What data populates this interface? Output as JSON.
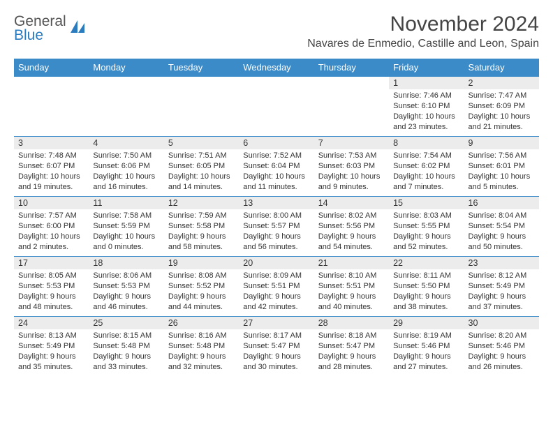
{
  "brand": {
    "part1": "General",
    "part2": "Blue"
  },
  "title": "November 2024",
  "location": "Navares de Enmedio, Castille and Leon, Spain",
  "colors": {
    "header_bg": "#3b8bc9",
    "header_text": "#ffffff",
    "cell_border": "#3b8bc9",
    "daynum_bg": "#ececec",
    "text": "#333333",
    "logo_blue": "#2b7bbf",
    "background": "#ffffff"
  },
  "fonts": {
    "title_pt": 30,
    "location_pt": 16,
    "th_pt": 13,
    "daynum_pt": 12.5,
    "body_pt": 11
  },
  "weekdays": [
    "Sunday",
    "Monday",
    "Tuesday",
    "Wednesday",
    "Thursday",
    "Friday",
    "Saturday"
  ],
  "weeks": [
    [
      null,
      null,
      null,
      null,
      null,
      {
        "n": "1",
        "sr": "Sunrise: 7:46 AM",
        "ss": "Sunset: 6:10 PM",
        "d1": "Daylight: 10 hours",
        "d2": "and 23 minutes."
      },
      {
        "n": "2",
        "sr": "Sunrise: 7:47 AM",
        "ss": "Sunset: 6:09 PM",
        "d1": "Daylight: 10 hours",
        "d2": "and 21 minutes."
      }
    ],
    [
      {
        "n": "3",
        "sr": "Sunrise: 7:48 AM",
        "ss": "Sunset: 6:07 PM",
        "d1": "Daylight: 10 hours",
        "d2": "and 19 minutes."
      },
      {
        "n": "4",
        "sr": "Sunrise: 7:50 AM",
        "ss": "Sunset: 6:06 PM",
        "d1": "Daylight: 10 hours",
        "d2": "and 16 minutes."
      },
      {
        "n": "5",
        "sr": "Sunrise: 7:51 AM",
        "ss": "Sunset: 6:05 PM",
        "d1": "Daylight: 10 hours",
        "d2": "and 14 minutes."
      },
      {
        "n": "6",
        "sr": "Sunrise: 7:52 AM",
        "ss": "Sunset: 6:04 PM",
        "d1": "Daylight: 10 hours",
        "d2": "and 11 minutes."
      },
      {
        "n": "7",
        "sr": "Sunrise: 7:53 AM",
        "ss": "Sunset: 6:03 PM",
        "d1": "Daylight: 10 hours",
        "d2": "and 9 minutes."
      },
      {
        "n": "8",
        "sr": "Sunrise: 7:54 AM",
        "ss": "Sunset: 6:02 PM",
        "d1": "Daylight: 10 hours",
        "d2": "and 7 minutes."
      },
      {
        "n": "9",
        "sr": "Sunrise: 7:56 AM",
        "ss": "Sunset: 6:01 PM",
        "d1": "Daylight: 10 hours",
        "d2": "and 5 minutes."
      }
    ],
    [
      {
        "n": "10",
        "sr": "Sunrise: 7:57 AM",
        "ss": "Sunset: 6:00 PM",
        "d1": "Daylight: 10 hours",
        "d2": "and 2 minutes."
      },
      {
        "n": "11",
        "sr": "Sunrise: 7:58 AM",
        "ss": "Sunset: 5:59 PM",
        "d1": "Daylight: 10 hours",
        "d2": "and 0 minutes."
      },
      {
        "n": "12",
        "sr": "Sunrise: 7:59 AM",
        "ss": "Sunset: 5:58 PM",
        "d1": "Daylight: 9 hours",
        "d2": "and 58 minutes."
      },
      {
        "n": "13",
        "sr": "Sunrise: 8:00 AM",
        "ss": "Sunset: 5:57 PM",
        "d1": "Daylight: 9 hours",
        "d2": "and 56 minutes."
      },
      {
        "n": "14",
        "sr": "Sunrise: 8:02 AM",
        "ss": "Sunset: 5:56 PM",
        "d1": "Daylight: 9 hours",
        "d2": "and 54 minutes."
      },
      {
        "n": "15",
        "sr": "Sunrise: 8:03 AM",
        "ss": "Sunset: 5:55 PM",
        "d1": "Daylight: 9 hours",
        "d2": "and 52 minutes."
      },
      {
        "n": "16",
        "sr": "Sunrise: 8:04 AM",
        "ss": "Sunset: 5:54 PM",
        "d1": "Daylight: 9 hours",
        "d2": "and 50 minutes."
      }
    ],
    [
      {
        "n": "17",
        "sr": "Sunrise: 8:05 AM",
        "ss": "Sunset: 5:53 PM",
        "d1": "Daylight: 9 hours",
        "d2": "and 48 minutes."
      },
      {
        "n": "18",
        "sr": "Sunrise: 8:06 AM",
        "ss": "Sunset: 5:53 PM",
        "d1": "Daylight: 9 hours",
        "d2": "and 46 minutes."
      },
      {
        "n": "19",
        "sr": "Sunrise: 8:08 AM",
        "ss": "Sunset: 5:52 PM",
        "d1": "Daylight: 9 hours",
        "d2": "and 44 minutes."
      },
      {
        "n": "20",
        "sr": "Sunrise: 8:09 AM",
        "ss": "Sunset: 5:51 PM",
        "d1": "Daylight: 9 hours",
        "d2": "and 42 minutes."
      },
      {
        "n": "21",
        "sr": "Sunrise: 8:10 AM",
        "ss": "Sunset: 5:51 PM",
        "d1": "Daylight: 9 hours",
        "d2": "and 40 minutes."
      },
      {
        "n": "22",
        "sr": "Sunrise: 8:11 AM",
        "ss": "Sunset: 5:50 PM",
        "d1": "Daylight: 9 hours",
        "d2": "and 38 minutes."
      },
      {
        "n": "23",
        "sr": "Sunrise: 8:12 AM",
        "ss": "Sunset: 5:49 PM",
        "d1": "Daylight: 9 hours",
        "d2": "and 37 minutes."
      }
    ],
    [
      {
        "n": "24",
        "sr": "Sunrise: 8:13 AM",
        "ss": "Sunset: 5:49 PM",
        "d1": "Daylight: 9 hours",
        "d2": "and 35 minutes."
      },
      {
        "n": "25",
        "sr": "Sunrise: 8:15 AM",
        "ss": "Sunset: 5:48 PM",
        "d1": "Daylight: 9 hours",
        "d2": "and 33 minutes."
      },
      {
        "n": "26",
        "sr": "Sunrise: 8:16 AM",
        "ss": "Sunset: 5:48 PM",
        "d1": "Daylight: 9 hours",
        "d2": "and 32 minutes."
      },
      {
        "n": "27",
        "sr": "Sunrise: 8:17 AM",
        "ss": "Sunset: 5:47 PM",
        "d1": "Daylight: 9 hours",
        "d2": "and 30 minutes."
      },
      {
        "n": "28",
        "sr": "Sunrise: 8:18 AM",
        "ss": "Sunset: 5:47 PM",
        "d1": "Daylight: 9 hours",
        "d2": "and 28 minutes."
      },
      {
        "n": "29",
        "sr": "Sunrise: 8:19 AM",
        "ss": "Sunset: 5:46 PM",
        "d1": "Daylight: 9 hours",
        "d2": "and 27 minutes."
      },
      {
        "n": "30",
        "sr": "Sunrise: 8:20 AM",
        "ss": "Sunset: 5:46 PM",
        "d1": "Daylight: 9 hours",
        "d2": "and 26 minutes."
      }
    ]
  ]
}
